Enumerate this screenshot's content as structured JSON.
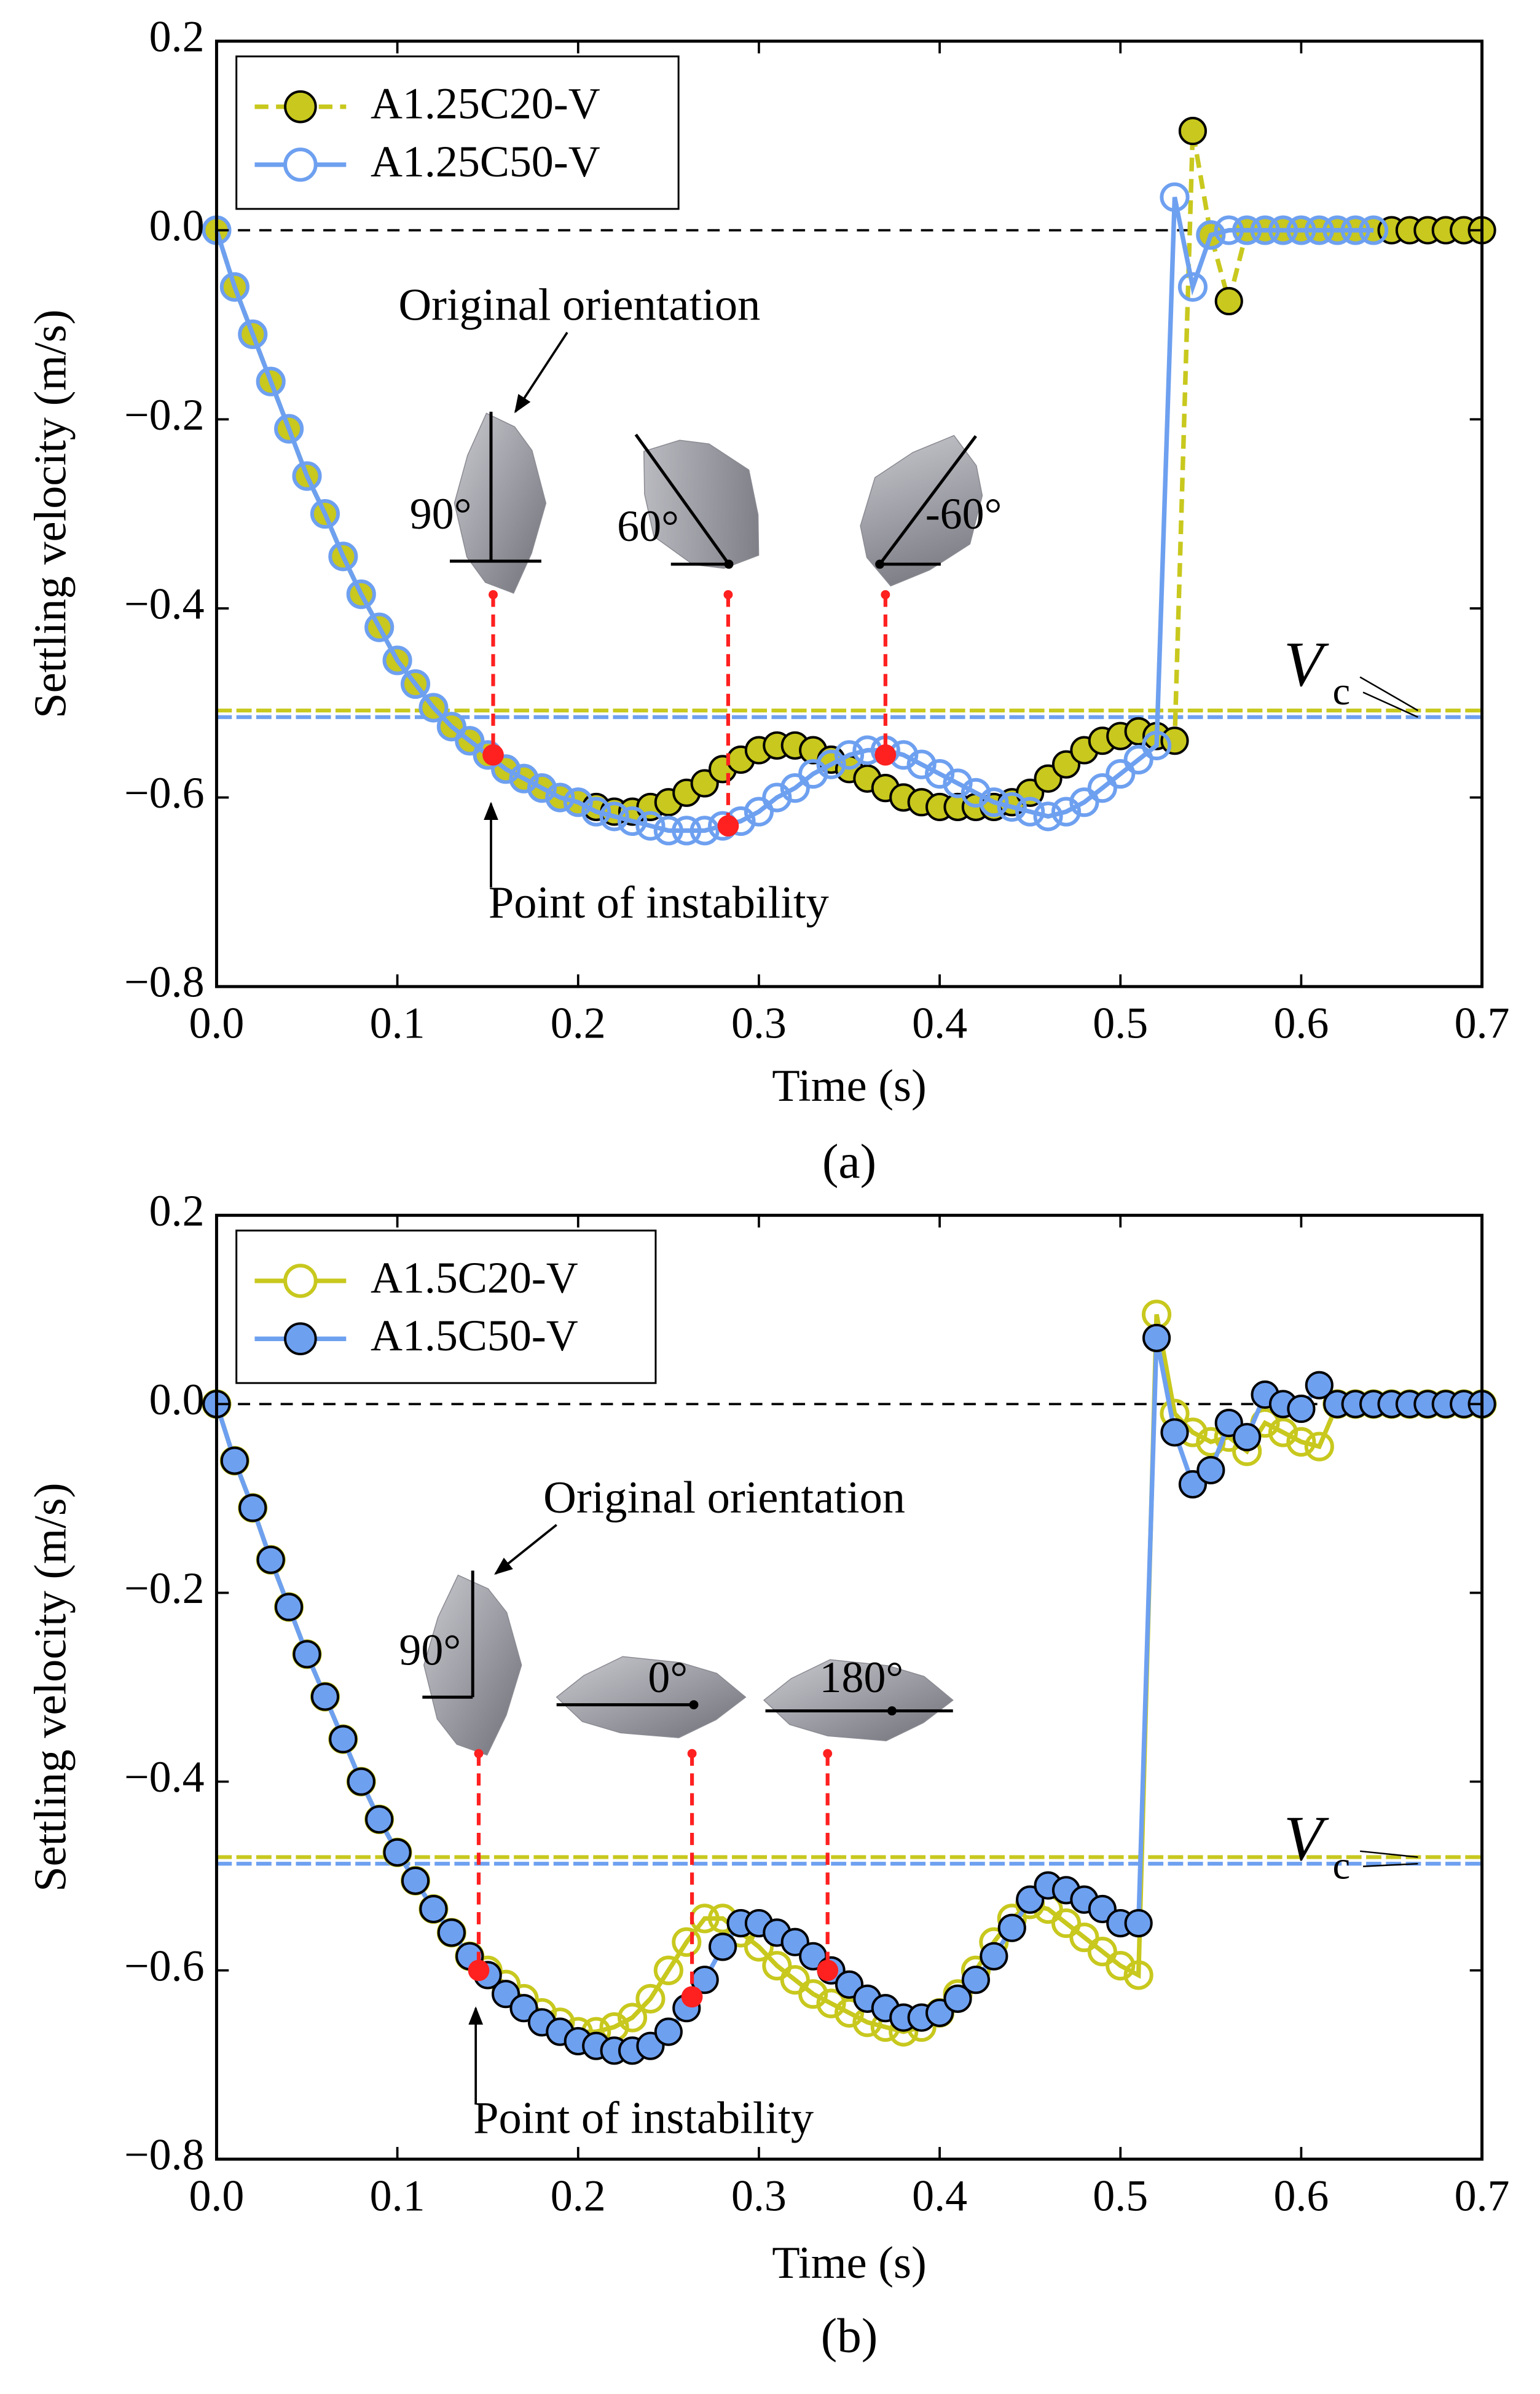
{
  "chart_data": [
    {
      "type": "line",
      "caption": "(a)",
      "xlabel": "Time (s)",
      "ylabel": "Settling velocity (m/s)",
      "x": [
        0,
        0.01,
        0.02,
        0.03,
        0.04,
        0.05,
        0.06,
        0.07,
        0.08,
        0.09,
        0.1,
        0.11,
        0.12,
        0.13,
        0.14,
        0.15,
        0.16,
        0.17,
        0.18,
        0.19,
        0.2,
        0.21,
        0.22,
        0.23,
        0.24,
        0.25,
        0.26,
        0.27,
        0.28,
        0.29,
        0.3,
        0.31,
        0.32,
        0.33,
        0.34,
        0.35,
        0.36,
        0.37,
        0.38,
        0.39,
        0.4,
        0.41,
        0.42,
        0.43,
        0.44,
        0.45,
        0.46,
        0.47,
        0.48,
        0.49,
        0.5,
        0.51,
        0.52,
        0.53,
        0.54,
        0.55,
        0.56,
        0.57,
        0.58,
        0.59,
        0.6,
        0.61,
        0.62,
        0.63,
        0.64,
        0.65,
        0.66,
        0.67,
        0.68,
        0.69,
        0.7
      ],
      "series": [
        {
          "name": "A1.25C20-V",
          "color": "#c8c81e",
          "linestyle": "dashed",
          "marker_filled": true,
          "values": [
            0,
            -0.06,
            -0.11,
            -0.16,
            -0.21,
            -0.26,
            -0.3,
            -0.345,
            -0.385,
            -0.42,
            -0.455,
            -0.48,
            -0.505,
            -0.525,
            -0.54,
            -0.555,
            -0.57,
            -0.58,
            -0.59,
            -0.6,
            -0.605,
            -0.61,
            -0.615,
            -0.615,
            -0.61,
            -0.605,
            -0.595,
            -0.585,
            -0.57,
            -0.56,
            -0.55,
            -0.545,
            -0.545,
            -0.55,
            -0.56,
            -0.57,
            -0.58,
            -0.59,
            -0.6,
            -0.605,
            -0.61,
            -0.61,
            -0.61,
            -0.61,
            -0.605,
            -0.595,
            -0.58,
            -0.565,
            -0.55,
            -0.54,
            -0.535,
            -0.53,
            -0.535,
            -0.54,
            0.105,
            -0.005,
            -0.075,
            0,
            0,
            0,
            0,
            0,
            0,
            0,
            0,
            0,
            0,
            0,
            0,
            0,
            0
          ]
        },
        {
          "name": "A1.25C50-V",
          "color": "#6ea0f0",
          "linestyle": "solid",
          "marker_filled": false,
          "values": [
            0,
            -0.06,
            -0.11,
            -0.16,
            -0.21,
            -0.26,
            -0.3,
            -0.345,
            -0.385,
            -0.42,
            -0.455,
            -0.48,
            -0.505,
            -0.525,
            -0.54,
            -0.555,
            -0.57,
            -0.58,
            -0.59,
            -0.6,
            -0.605,
            -0.615,
            -0.62,
            -0.625,
            -0.63,
            -0.635,
            -0.635,
            -0.635,
            -0.63,
            -0.625,
            -0.615,
            -0.6,
            -0.59,
            -0.575,
            -0.565,
            -0.555,
            -0.55,
            -0.55,
            -0.555,
            -0.565,
            -0.575,
            -0.585,
            -0.595,
            -0.605,
            -0.61,
            -0.615,
            -0.62,
            -0.615,
            -0.605,
            -0.59,
            -0.575,
            -0.56,
            -0.545,
            0.035,
            -0.06,
            -0.005,
            0,
            0,
            0,
            0,
            0,
            0,
            0,
            0,
            0,
            null,
            null,
            null,
            null,
            null,
            null
          ]
        }
      ],
      "thresholds": [
        {
          "value": -0.508,
          "color": "#c8c81e"
        },
        {
          "value": -0.515,
          "color": "#6ea0f0"
        }
      ],
      "hline": 0,
      "vc_label": "V",
      "vc_subscript": "c",
      "orientation_label": "Original orientation",
      "instability_label": "Point of instability",
      "angles": [
        "90°",
        "60°",
        "-60°"
      ],
      "instability_points": {
        "x": [
          0.153,
          0.283,
          0.37
        ],
        "y": [
          -0.555,
          -0.63,
          -0.555
        ],
        "color": "#ff2020"
      },
      "legend": "upper left",
      "xlim": [
        0,
        0.7
      ],
      "xticks": [
        {
          "value": 0,
          "label": "0.0"
        },
        0.1,
        0.2,
        0.3,
        0.4,
        0.5,
        0.6,
        0.7
      ],
      "ylim": [
        -0.8,
        0.2
      ],
      "yticks": [
        {
          "value": -0.8,
          "label": "−0.8"
        },
        {
          "value": -0.6,
          "label": "−0.6"
        },
        {
          "value": -0.4,
          "label": "−0.4"
        },
        {
          "value": -0.2,
          "label": "−0.2"
        },
        {
          "value": 0,
          "label": "0.0"
        },
        0.2
      ]
    },
    {
      "type": "line",
      "caption": "(b)",
      "xlabel": "Time (s)",
      "ylabel": "Settling velocity (m/s)",
      "x": [
        0,
        0.01,
        0.02,
        0.03,
        0.04,
        0.05,
        0.06,
        0.07,
        0.08,
        0.09,
        0.1,
        0.11,
        0.12,
        0.13,
        0.14,
        0.15,
        0.16,
        0.17,
        0.18,
        0.19,
        0.2,
        0.21,
        0.22,
        0.23,
        0.24,
        0.25,
        0.26,
        0.27,
        0.28,
        0.29,
        0.3,
        0.31,
        0.32,
        0.33,
        0.34,
        0.35,
        0.36,
        0.37,
        0.38,
        0.39,
        0.4,
        0.41,
        0.42,
        0.43,
        0.44,
        0.45,
        0.46,
        0.47,
        0.48,
        0.49,
        0.5,
        0.51,
        0.52,
        0.53,
        0.54,
        0.55,
        0.56,
        0.57,
        0.58,
        0.59,
        0.6,
        0.61,
        0.62,
        0.63,
        0.64,
        0.65,
        0.66,
        0.67,
        0.68,
        0.69,
        0.7
      ],
      "series": [
        {
          "name": "A1.5C20-V",
          "color": "#c8c81e",
          "linestyle": "solid",
          "marker_filled": false,
          "values": [
            0,
            -0.06,
            -0.11,
            -0.165,
            -0.215,
            -0.265,
            -0.31,
            -0.355,
            -0.4,
            -0.44,
            -0.475,
            -0.505,
            -0.535,
            -0.56,
            -0.585,
            -0.6,
            -0.615,
            -0.63,
            -0.645,
            -0.655,
            -0.665,
            -0.665,
            -0.66,
            -0.65,
            -0.63,
            -0.6,
            -0.57,
            -0.545,
            -0.545,
            -0.56,
            -0.575,
            -0.595,
            -0.61,
            -0.625,
            -0.635,
            -0.645,
            -0.655,
            -0.66,
            -0.665,
            -0.66,
            -0.645,
            -0.625,
            -0.6,
            -0.57,
            -0.545,
            -0.53,
            -0.535,
            -0.55,
            -0.565,
            -0.58,
            -0.595,
            -0.605,
            0.095,
            -0.01,
            -0.03,
            -0.04,
            -0.035,
            -0.05,
            -0.02,
            -0.03,
            -0.04,
            -0.045,
            0,
            0,
            0,
            0,
            0,
            0,
            0,
            0,
            0
          ]
        },
        {
          "name": "A1.5C50-V",
          "color": "#6ea0f0",
          "linestyle": "solid",
          "marker_filled": true,
          "values": [
            0,
            -0.06,
            -0.11,
            -0.165,
            -0.215,
            -0.265,
            -0.31,
            -0.355,
            -0.4,
            -0.44,
            -0.475,
            -0.505,
            -0.535,
            -0.56,
            -0.585,
            -0.605,
            -0.625,
            -0.64,
            -0.655,
            -0.665,
            -0.675,
            -0.68,
            -0.685,
            -0.685,
            -0.68,
            -0.665,
            -0.64,
            -0.61,
            -0.575,
            -0.55,
            -0.55,
            -0.56,
            -0.57,
            -0.585,
            -0.6,
            -0.615,
            -0.63,
            -0.64,
            -0.65,
            -0.65,
            -0.645,
            -0.63,
            -0.61,
            -0.585,
            -0.555,
            -0.525,
            -0.51,
            -0.515,
            -0.525,
            -0.535,
            -0.55,
            -0.55,
            0.07,
            -0.03,
            -0.085,
            -0.07,
            -0.02,
            -0.035,
            0.01,
            0,
            -0.005,
            0.02,
            0,
            0,
            0,
            0,
            0,
            0,
            0,
            0,
            0
          ]
        }
      ],
      "thresholds": [
        {
          "value": -0.48,
          "color": "#c8c81e"
        },
        {
          "value": -0.487,
          "color": "#6ea0f0"
        }
      ],
      "hline": 0,
      "vc_label": "V",
      "vc_subscript": "c",
      "orientation_label": "Original orientation",
      "instability_label": "Point of instability",
      "angles": [
        "90°",
        "0°",
        "180°"
      ],
      "instability_points": {
        "x": [
          0.145,
          0.263,
          0.338
        ],
        "y": [
          -0.6,
          -0.628,
          -0.6
        ],
        "color": "#ff2020"
      },
      "legend": "upper left",
      "xlim": [
        0,
        0.7
      ],
      "xticks": [
        {
          "value": 0,
          "label": "0.0"
        },
        0.1,
        0.2,
        0.3,
        0.4,
        0.5,
        0.6,
        0.7
      ],
      "ylim": [
        -0.8,
        0.2
      ],
      "yticks": [
        {
          "value": -0.8,
          "label": "−0.8"
        },
        {
          "value": -0.6,
          "label": "−0.6"
        },
        {
          "value": -0.4,
          "label": "−0.4"
        },
        {
          "value": -0.2,
          "label": "−0.2"
        },
        {
          "value": 0,
          "label": "0.0"
        },
        0.2
      ]
    }
  ]
}
